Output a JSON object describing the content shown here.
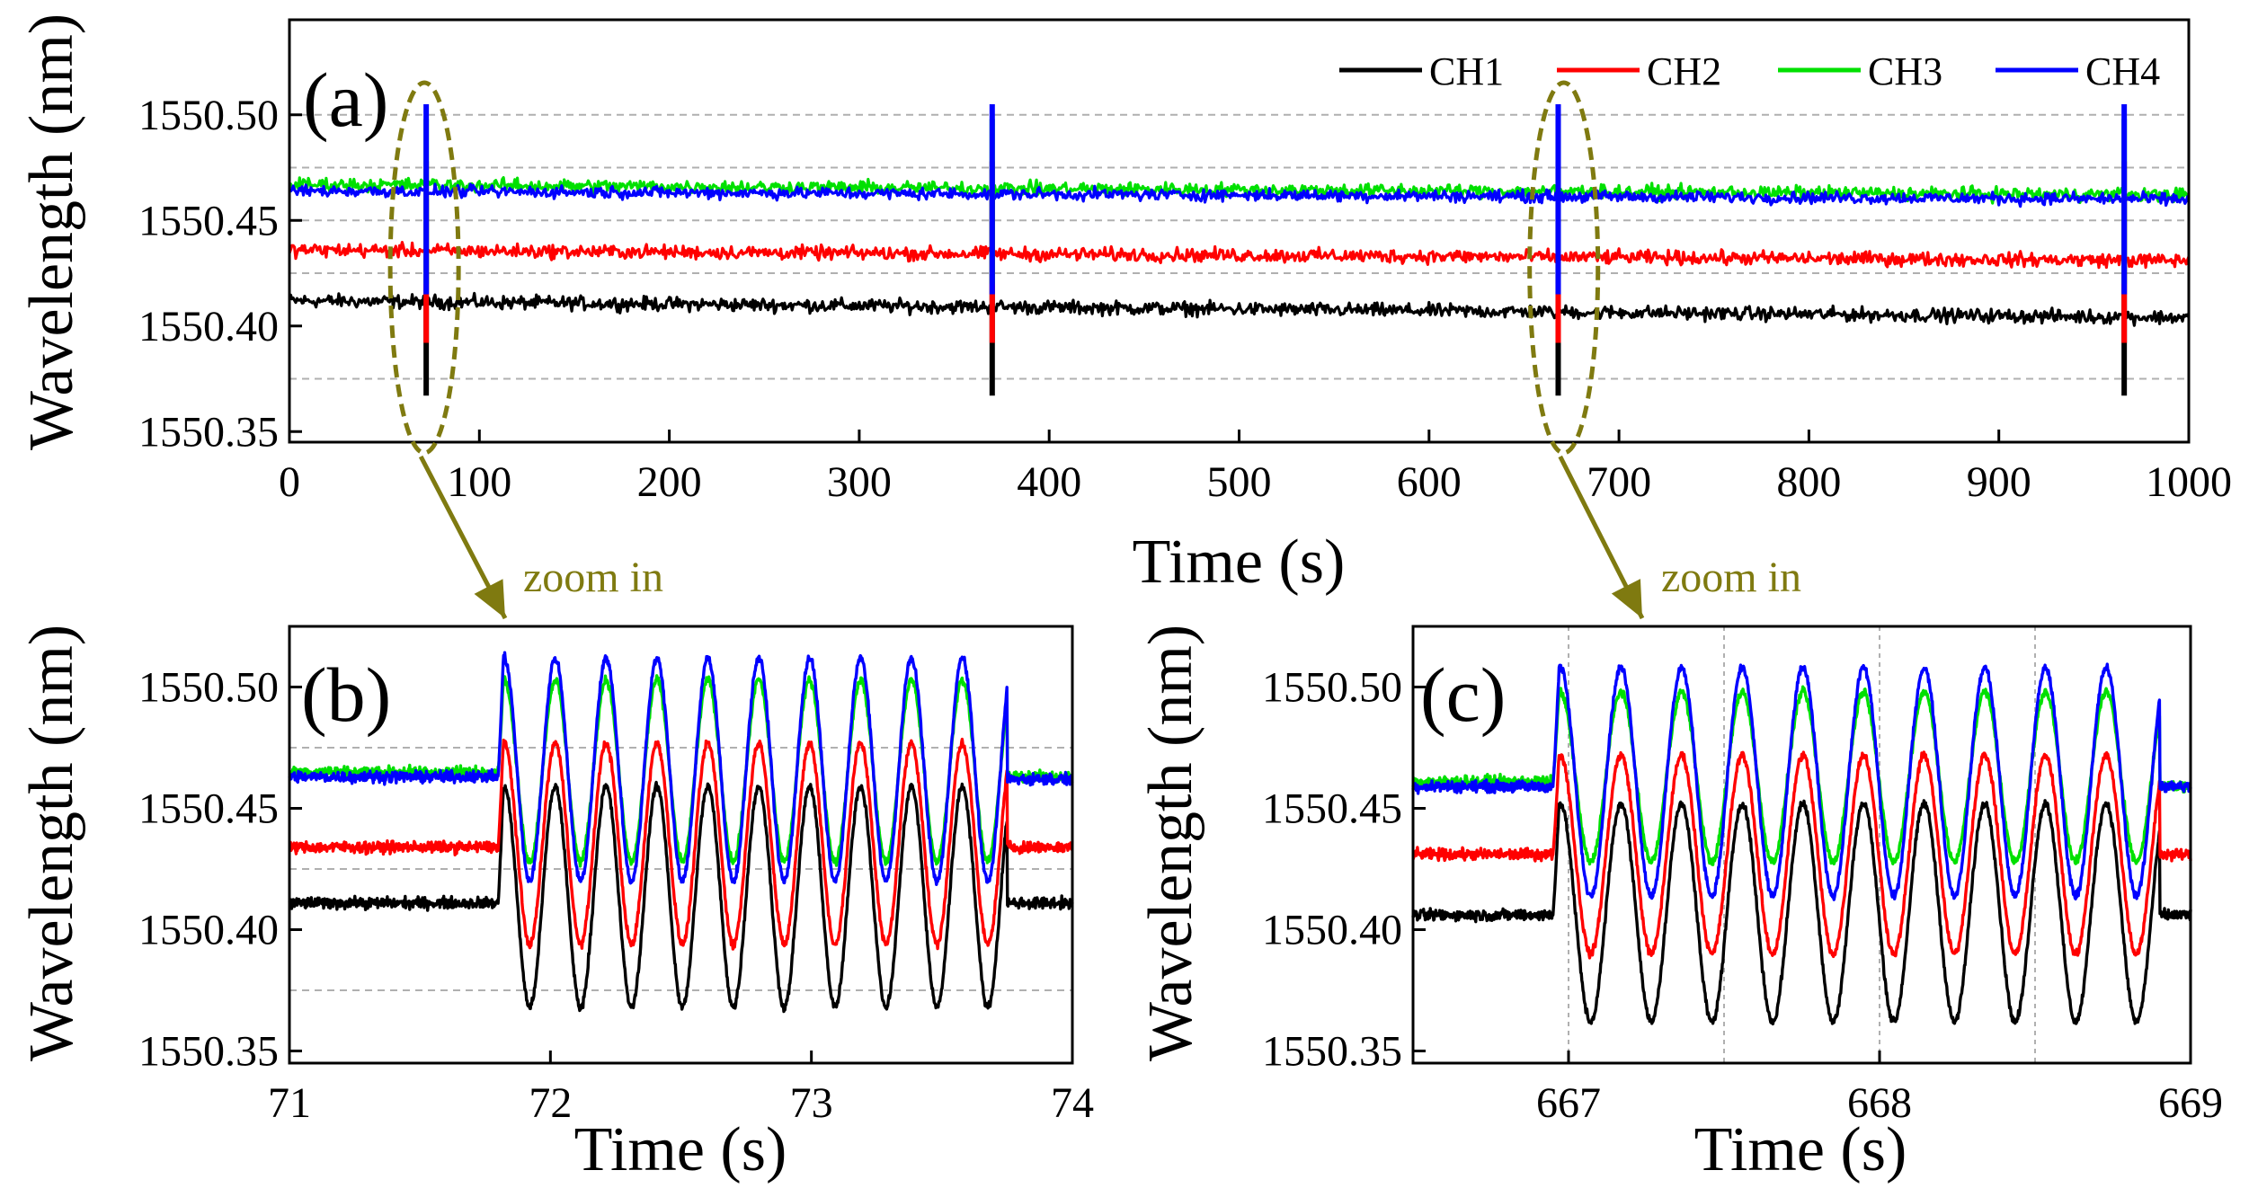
{
  "chart_data": [
    {
      "id": "a",
      "type": "line",
      "panel_label": "(a)",
      "xlabel": "Time (s)",
      "ylabel": "Wavelength (nm)",
      "xlim": [
        0,
        1000
      ],
      "ylim": [
        1550.345,
        1550.545
      ],
      "xticks": [
        0,
        100,
        200,
        300,
        400,
        500,
        600,
        700,
        800,
        900,
        1000
      ],
      "yticks": [
        1550.35,
        1550.4,
        1550.45,
        1550.5
      ],
      "grid_y": [
        1550.375,
        1550.425,
        1550.45,
        1550.475,
        1550.5
      ],
      "legend": {
        "position": "top-right",
        "entries": [
          "CH1",
          "CH2",
          "CH3",
          "CH4"
        ]
      },
      "series": [
        {
          "name": "CH1",
          "color": "#000000",
          "start": 1550.412,
          "end": 1550.404,
          "noise": 0.0035,
          "spike_low": 1550.367,
          "spike_high": 1550.46
        },
        {
          "name": "CH2",
          "color": "#ff0000",
          "start": 1550.436,
          "end": 1550.431,
          "noise": 0.0035,
          "spike_low": 1550.392,
          "spike_high": 1550.478
        },
        {
          "name": "CH3",
          "color": "#00e000",
          "start": 1550.467,
          "end": 1550.462,
          "noise": 0.0035,
          "spike_low": 1550.42,
          "spike_high": 1550.498
        },
        {
          "name": "CH4",
          "color": "#0000ff",
          "start": 1550.464,
          "end": 1550.46,
          "noise": 0.003,
          "spike_low": 1550.415,
          "spike_high": 1550.505
        }
      ],
      "events_s": [
        72,
        370,
        668,
        966
      ],
      "annotations": [
        {
          "text": "zoom in",
          "ellipse_center_s": 72,
          "target": "b"
        },
        {
          "text": "zoom in",
          "ellipse_center_s": 670,
          "target": "c"
        }
      ]
    },
    {
      "id": "b",
      "type": "line",
      "panel_label": "(b)",
      "xlabel": "Time (s)",
      "ylabel": "Wavelength (nm)",
      "xlim": [
        71,
        74
      ],
      "ylim": [
        1550.345,
        1550.525
      ],
      "xticks": [
        71,
        72,
        73,
        74
      ],
      "yticks": [
        1550.35,
        1550.4,
        1550.45,
        1550.5
      ],
      "grid_y": [
        1550.375,
        1550.425,
        1550.475
      ],
      "oscillation": {
        "start_s": 71.8,
        "end_s": 73.75,
        "cycles": 10
      },
      "series": [
        {
          "name": "CH1",
          "color": "#000000",
          "base": 1550.411,
          "min": 1550.368,
          "max": 1550.459,
          "end_base": 1550.411
        },
        {
          "name": "CH2",
          "color": "#ff0000",
          "base": 1550.434,
          "min": 1550.394,
          "max": 1550.477,
          "end_base": 1550.434
        },
        {
          "name": "CH3",
          "color": "#00e000",
          "base": 1550.465,
          "min": 1550.428,
          "max": 1550.503,
          "end_base": 1550.463
        },
        {
          "name": "CH4",
          "color": "#0000ff",
          "base": 1550.463,
          "min": 1550.42,
          "max": 1550.512,
          "end_base": 1550.462
        }
      ]
    },
    {
      "id": "c",
      "type": "line",
      "panel_label": "(c)",
      "xlabel": "Time (s)",
      "ylabel": "Wavelength (nm)",
      "xlim": [
        666.5,
        669
      ],
      "ylim": [
        1550.345,
        1550.525
      ],
      "xticks": [
        667,
        668,
        669
      ],
      "yticks": [
        1550.35,
        1550.4,
        1550.45,
        1550.5
      ],
      "grid_x": [
        667,
        667.5,
        668,
        668.5
      ],
      "oscillation": {
        "start_s": 666.95,
        "end_s": 668.9,
        "cycles": 10
      },
      "series": [
        {
          "name": "CH1",
          "color": "#000000",
          "base": 1550.406,
          "min": 1550.362,
          "max": 1550.452,
          "end_base": 1550.406
        },
        {
          "name": "CH2",
          "color": "#ff0000",
          "base": 1550.431,
          "min": 1550.39,
          "max": 1550.472,
          "end_base": 1550.431
        },
        {
          "name": "CH3",
          "color": "#00e000",
          "base": 1550.461,
          "min": 1550.428,
          "max": 1550.498,
          "end_base": 1550.459
        },
        {
          "name": "CH4",
          "color": "#0000ff",
          "base": 1550.459,
          "min": 1550.414,
          "max": 1550.508,
          "end_base": 1550.459
        }
      ]
    }
  ],
  "annotation_color": "#7f7a10",
  "grid_color": "#b0b0b0"
}
